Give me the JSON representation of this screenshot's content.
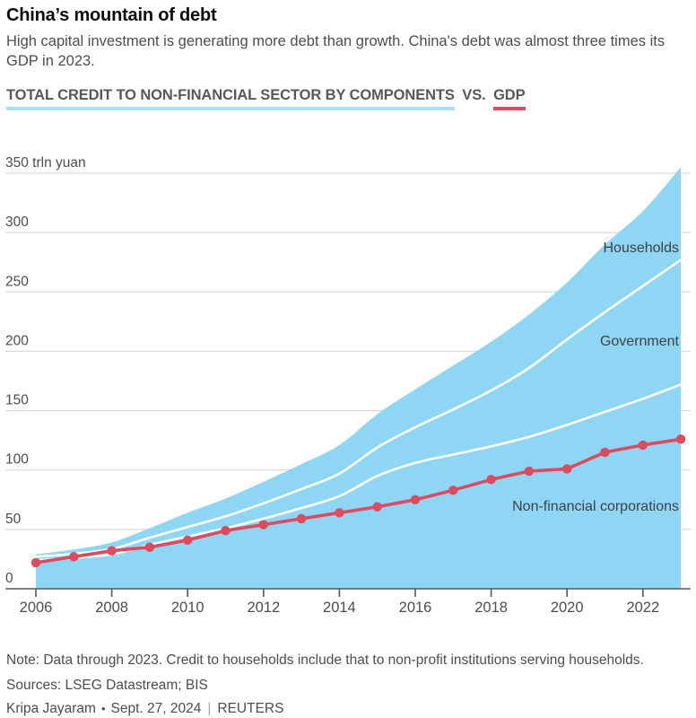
{
  "header": {
    "title": "China’s mountain of debt",
    "dek": "High capital investment is generating more debt than growth. China's debt was almost three times its GDP in 2023.",
    "section_label_credit": "TOTAL CREDIT TO NON-FINANCIAL SECTOR BY COMPONENTS",
    "section_label_vs": "VS.",
    "section_label_gdp": "GDP"
  },
  "colors": {
    "area_blue": "#8FD6F5",
    "underline_blue": "#A9DFF6",
    "gdp_red": "#DE4A5E",
    "underline_red": "#E0495E",
    "grid_gray": "#d9d9d9",
    "axis_gray": "#55565a",
    "label_dark": "#3f4043",
    "tick_text": "#4d4d4d"
  },
  "chart_data": {
    "type": "area",
    "title": "TOTAL CREDIT TO NON-FINANCIAL SECTOR BY COMPONENTS VS. GDP",
    "unit": "trln yuan",
    "x": [
      2006,
      2007,
      2008,
      2009,
      2010,
      2011,
      2012,
      2013,
      2014,
      2015,
      2016,
      2017,
      2018,
      2019,
      2020,
      2021,
      2022,
      2023
    ],
    "xticks": [
      2006,
      2008,
      2010,
      2012,
      2014,
      2016,
      2018,
      2020,
      2022
    ],
    "yticks": [
      0,
      50,
      100,
      150,
      200,
      250,
      300,
      350
    ],
    "ytick_top_label": "350 trln yuan",
    "ylim": [
      0,
      355
    ],
    "xlim": [
      2006,
      2023
    ],
    "grid": true,
    "legend_position": "inline-labels",
    "series": [
      {
        "name": "Non-financial corporations",
        "role": "stacked-area",
        "values": [
          24,
          26,
          29,
          37,
          44,
          51,
          59,
          68,
          78,
          95,
          106,
          113,
          120,
          128,
          138,
          149,
          160,
          172
        ]
      },
      {
        "name": "Government",
        "role": "stacked-area",
        "values": [
          3,
          3.5,
          4.5,
          6,
          8,
          10,
          13,
          16,
          19,
          24,
          30,
          38,
          47,
          58,
          72,
          84,
          95,
          105
        ]
      },
      {
        "name": "Households",
        "role": "stacked-area",
        "values": [
          2,
          3.5,
          5.5,
          8,
          12,
          15,
          18,
          21,
          24,
          28,
          32,
          37,
          41,
          45,
          48,
          57,
          63,
          78
        ]
      },
      {
        "name": "GDP",
        "role": "line-with-dots",
        "values": [
          22,
          27,
          32,
          35,
          41,
          49,
          54,
          59,
          64,
          69,
          75,
          83,
          92,
          99,
          101,
          115,
          121,
          126
        ]
      }
    ],
    "area_labels": [
      "Households",
      "Government",
      "Non-financial corporations"
    ]
  },
  "footer": {
    "note": "Note: Data through 2023. Credit to households include that to non-profit institutions serving households.",
    "sources": "Sources: LSEG Datastream; BIS",
    "byline": "Kripa Jayaram",
    "bullet": "•",
    "date": "Sept. 27, 2024",
    "pipe": "|",
    "brand": "REUTERS"
  }
}
